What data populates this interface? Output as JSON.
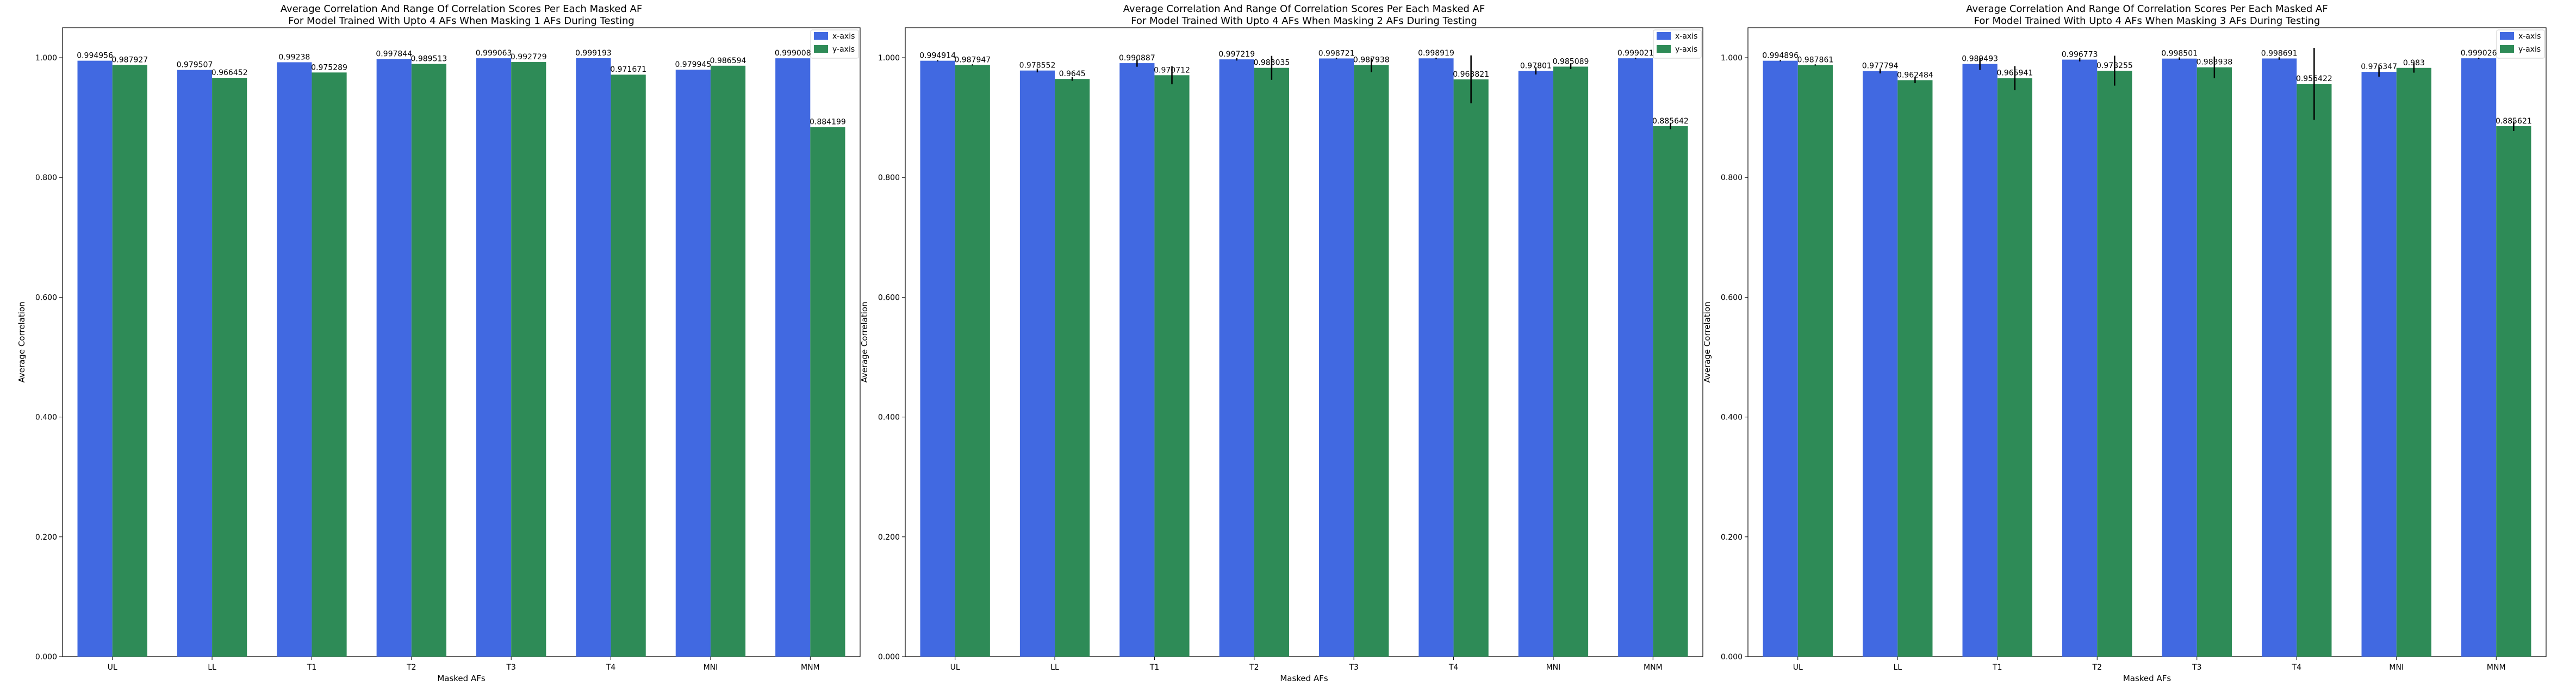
{
  "chart_data": [
    {
      "type": "bar",
      "title": "Average Correlation And Range Of Correlation Scores Per Each Masked AF",
      "subtitle": "For Model Trained With Upto 4 AFs When Masking 1 AFs During Testing",
      "xlabel": "Masked AFs",
      "ylabel": "Average Correlation",
      "ylim": [
        0,
        1.05
      ],
      "yticks": [
        "0.000",
        "0.200",
        "0.400",
        "0.600",
        "0.800",
        "1.000"
      ],
      "legend_position": "top-right",
      "categories": [
        "UL",
        "LL",
        "T1",
        "T2",
        "T3",
        "T4",
        "MNI",
        "MNM"
      ],
      "series": [
        {
          "name": "x-axis",
          "color": "#4169e1",
          "values": [
            0.994956,
            0.979507,
            0.99238,
            0.997844,
            0.999063,
            0.999193,
            0.979945,
            0.999008
          ],
          "labels": [
            "0.994956",
            "0.979507",
            "0.99238",
            "0.997844",
            "0.999063",
            "0.999193",
            "0.979945",
            "0.999008"
          ],
          "err_low": [
            0,
            0,
            0,
            0,
            0,
            0,
            0,
            0
          ],
          "err_high": [
            0,
            0,
            0,
            0,
            0,
            0,
            0,
            0
          ]
        },
        {
          "name": "y-axis",
          "color": "#2e8b57",
          "values": [
            0.987927,
            0.966452,
            0.975289,
            0.989513,
            0.992729,
            0.971671,
            0.986594,
            0.884199
          ],
          "labels": [
            "0.987927",
            "0.966452",
            "0.975289",
            "0.989513",
            "0.992729",
            "0.971671",
            "0.986594",
            "0.884199"
          ],
          "err_low": [
            0,
            0,
            0,
            0,
            0,
            0,
            0,
            0
          ],
          "err_high": [
            0,
            0,
            0,
            0,
            0,
            0,
            0,
            0
          ]
        }
      ]
    },
    {
      "type": "bar",
      "title": "Average Correlation And Range Of Correlation Scores Per Each Masked AF",
      "subtitle": "For Model Trained With Upto 4 AFs When Masking 2 AFs During Testing",
      "xlabel": "Masked AFs",
      "ylabel": "Average Correlation",
      "ylim": [
        0,
        1.05
      ],
      "yticks": [
        "0.000",
        "0.200",
        "0.400",
        "0.600",
        "0.800",
        "1.000"
      ],
      "legend_position": "top-right",
      "categories": [
        "UL",
        "LL",
        "T1",
        "T2",
        "T3",
        "T4",
        "MNI",
        "MNM"
      ],
      "series": [
        {
          "name": "x-axis",
          "color": "#4169e1",
          "values": [
            0.994914,
            0.978552,
            0.990887,
            0.997219,
            0.998721,
            0.998919,
            0.97801,
            0.999021
          ],
          "labels": [
            "0.994914",
            "0.978552",
            "0.990887",
            "0.997219",
            "0.998721",
            "0.998919",
            "0.97801",
            "0.999021"
          ],
          "err_low": [
            0.001,
            0.003,
            0.006,
            0.002,
            0.001,
            0.001,
            0.006,
            0.001
          ],
          "err_high": [
            0.001,
            0.003,
            0.006,
            0.002,
            0.001,
            0.001,
            0.006,
            0.001
          ]
        },
        {
          "name": "y-axis",
          "color": "#2e8b57",
          "values": [
            0.987947,
            0.9645,
            0.970712,
            0.983035,
            0.987938,
            0.963821,
            0.985089,
            0.885642
          ],
          "labels": [
            "0.987947",
            "0.9645",
            "0.970712",
            "0.983035",
            "0.987938",
            "0.963821",
            "0.985089",
            "0.885642"
          ],
          "err_low": [
            0.001,
            0.003,
            0.015,
            0.02,
            0.012,
            0.04,
            0.004,
            0.005
          ],
          "err_high": [
            0.001,
            0.003,
            0.015,
            0.02,
            0.012,
            0.04,
            0.004,
            0.005
          ]
        }
      ]
    },
    {
      "type": "bar",
      "title": "Average Correlation And Range Of Correlation Scores Per Each Masked AF",
      "subtitle": "For Model Trained With Upto 4 AFs When Masking 3 AFs During Testing",
      "xlabel": "Masked AFs",
      "ylabel": "Average Correlation",
      "ylim": [
        0,
        1.05
      ],
      "yticks": [
        "0.000",
        "0.200",
        "0.400",
        "0.600",
        "0.800",
        "1.000"
      ],
      "legend_position": "top-right",
      "categories": [
        "UL",
        "LL",
        "T1",
        "T2",
        "T3",
        "T4",
        "MNI",
        "MNM"
      ],
      "series": [
        {
          "name": "x-axis",
          "color": "#4169e1",
          "values": [
            0.994896,
            0.977794,
            0.989493,
            0.996773,
            0.998501,
            0.998691,
            0.976347,
            0.999026
          ],
          "labels": [
            "0.994896",
            "0.977794",
            "0.989493",
            "0.996773",
            "0.998501",
            "0.998691",
            "0.976347",
            "0.999026"
          ],
          "err_low": [
            0.001,
            0.004,
            0.01,
            0.003,
            0.002,
            0.002,
            0.008,
            0.001
          ],
          "err_high": [
            0.001,
            0.004,
            0.01,
            0.003,
            0.002,
            0.002,
            0.008,
            0.001
          ]
        },
        {
          "name": "y-axis",
          "color": "#2e8b57",
          "values": [
            0.987861,
            0.962484,
            0.965941,
            0.978255,
            0.983938,
            0.956422,
            0.983,
            0.885621
          ],
          "labels": [
            "0.987861",
            "0.962484",
            "0.965941",
            "0.978255",
            "0.983938",
            "0.956422",
            "0.983",
            "0.885621"
          ],
          "err_low": [
            0.001,
            0.005,
            0.02,
            0.025,
            0.018,
            0.06,
            0.008,
            0.008
          ],
          "err_high": [
            0.001,
            0.005,
            0.02,
            0.025,
            0.018,
            0.06,
            0.008,
            0.008
          ]
        }
      ]
    }
  ]
}
